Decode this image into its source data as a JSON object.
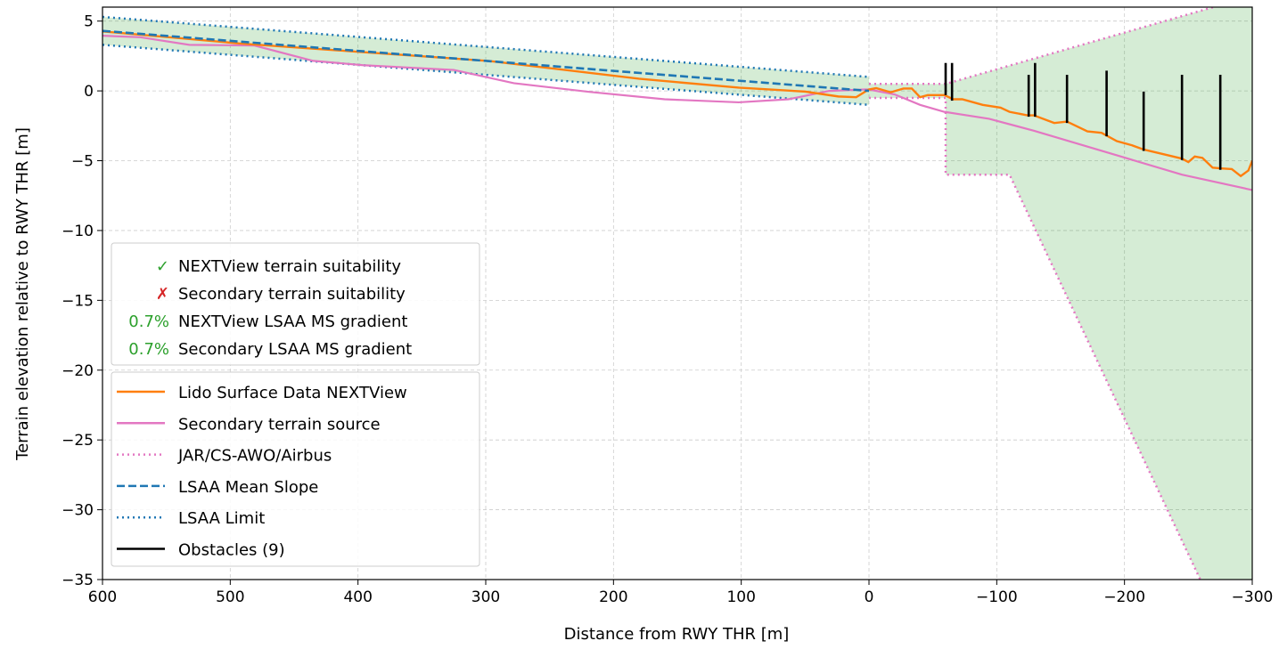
{
  "chart_data": {
    "type": "line",
    "xlabel": "Distance from RWY THR [m]",
    "ylabel": "Terrain elevation relative to RWY THR [m]",
    "xlim": [
      600,
      -300
    ],
    "ylim": [
      -35,
      6
    ],
    "x_reversed": true,
    "xticks": [
      600,
      500,
      400,
      300,
      200,
      100,
      0,
      -100,
      -200,
      -300
    ],
    "yticks": [
      5,
      0,
      -5,
      -10,
      -15,
      -20,
      -25,
      -30,
      -35
    ],
    "grid": true,
    "legend_placement": "lower-left",
    "colors": {
      "nextview": "#ff7f0e",
      "secondary": "#e377c2",
      "lsaa": "#1f77b4",
      "obstacles": "#000000",
      "fill": "#2ca02c",
      "ok": "#2ca02c",
      "fail": "#d62728"
    },
    "info_legend": [
      {
        "marker": "✓",
        "marker_color": "#2ca02c",
        "text": "NEXTView  terrain suitability"
      },
      {
        "marker": "✗",
        "marker_color": "#d62728",
        "text": "Secondary terrain suitability"
      },
      {
        "marker": "0.7%",
        "marker_color": "#2ca02c",
        "text": "NEXTView  LSAA MS gradient"
      },
      {
        "marker": "0.7%",
        "marker_color": "#2ca02c",
        "text": "Secondary LSAA MS gradient"
      }
    ],
    "series_legend": [
      {
        "name": "Lido Surface Data NEXTView",
        "color": "#ff7f0e",
        "style": "solid"
      },
      {
        "name": "Secondary terrain source",
        "color": "#e377c2",
        "style": "solid"
      },
      {
        "name": "JAR/CS-AWO/Airbus",
        "color": "#e377c2",
        "style": "dotted"
      },
      {
        "name": "LSAA Mean Slope",
        "color": "#1f77b4",
        "style": "dashed"
      },
      {
        "name": "LSAA Limit",
        "color": "#1f77b4",
        "style": "dotted"
      },
      {
        "name": "Obstacles (9)",
        "color": "#000000",
        "style": "solid"
      }
    ],
    "series": [
      {
        "name": "Lido Surface Data NEXTView",
        "x": [
          600,
          493,
          400,
          297,
          180,
          102,
          50,
          24,
          10,
          2,
          0,
          -5.6,
          -17,
          -27,
          -33.5,
          -40,
          -46,
          -59,
          -66,
          -73,
          -89,
          -103,
          -110,
          -124,
          -129,
          -145,
          -155,
          -171,
          -182,
          -194,
          -206,
          -215,
          -229,
          -245,
          -250,
          -255,
          -261,
          -269,
          -276,
          -284,
          -291,
          -297,
          -300
        ],
        "y": [
          4.26,
          3.4,
          2.8,
          2.14,
          0.87,
          0.23,
          -0.05,
          -0.4,
          -0.45,
          0.0,
          0.1,
          0.2,
          -0.1,
          0.17,
          0.17,
          -0.45,
          -0.3,
          -0.3,
          -0.6,
          -0.6,
          -1.0,
          -1.2,
          -1.5,
          -1.75,
          -1.75,
          -2.3,
          -2.2,
          -2.9,
          -3.0,
          -3.6,
          -3.9,
          -4.2,
          -4.5,
          -4.85,
          -5.1,
          -4.7,
          -4.8,
          -5.5,
          -5.55,
          -5.6,
          -6.1,
          -5.7,
          -5.0
        ]
      },
      {
        "name": "Secondary terrain source",
        "x": [
          600,
          571,
          532,
          481,
          435,
          396,
          325,
          278,
          219,
          160,
          102,
          63,
          31,
          3,
          0,
          -20,
          -40,
          -59,
          -94,
          -129,
          -199,
          -245,
          -300
        ],
        "y": [
          3.95,
          3.85,
          3.3,
          3.25,
          2.15,
          1.84,
          1.5,
          0.55,
          -0.07,
          -0.6,
          -0.82,
          -0.6,
          0.0,
          0.1,
          0.1,
          -0.25,
          -1.0,
          -1.5,
          -2.0,
          -2.85,
          -4.75,
          -6.0,
          -7.1
        ]
      },
      {
        "name": "LSAA Mean Slope",
        "x": [
          600,
          0
        ],
        "y": [
          4.3,
          0
        ]
      },
      {
        "name": "LSAA Limit upper",
        "x": [
          600,
          0
        ],
        "y": [
          5.3,
          1.0
        ]
      },
      {
        "name": "LSAA Limit lower",
        "x": [
          600,
          0
        ],
        "y": [
          3.3,
          -1.0
        ]
      },
      {
        "name": "JAR/CS-AWO/Airbus upper",
        "x": [
          0,
          -60,
          -300
        ],
        "y": [
          0.5,
          0.5,
          6.8
        ]
      },
      {
        "name": "JAR/CS-AWO/Airbus lower",
        "x": [
          0,
          -60,
          -60,
          -110,
          -300
        ],
        "y": [
          -0.5,
          -0.5,
          -6,
          -6,
          -42.9
        ]
      }
    ],
    "obstacles": [
      {
        "x": -60,
        "bottom": -0.3,
        "top": 2.0
      },
      {
        "x": -65,
        "bottom": -0.7,
        "top": 2.0
      },
      {
        "x": -125,
        "bottom": -1.85,
        "top": 1.15
      },
      {
        "x": -130,
        "bottom": -1.85,
        "top": 2.0
      },
      {
        "x": -155,
        "bottom": -2.3,
        "top": 1.15
      },
      {
        "x": -186,
        "bottom": -3.25,
        "top": 1.45
      },
      {
        "x": -215,
        "bottom": -4.3,
        "top": -0.05
      },
      {
        "x": -245,
        "bottom": -4.95,
        "top": 1.15
      },
      {
        "x": -275,
        "bottom": -5.65,
        "top": 1.15
      }
    ]
  }
}
